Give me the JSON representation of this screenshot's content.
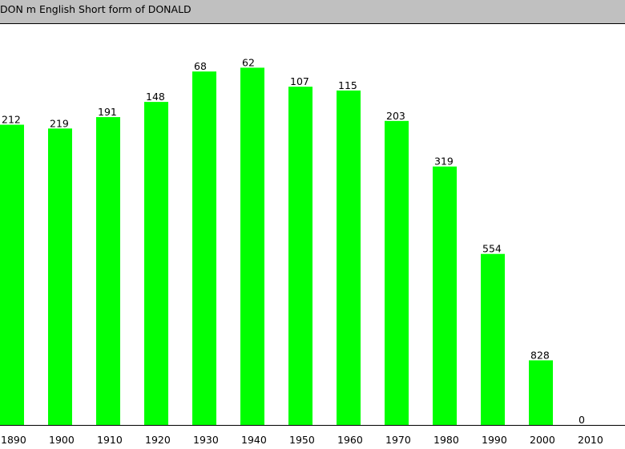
{
  "header": {
    "title": "DON m English Short form of DONALD"
  },
  "chart_data": {
    "type": "bar",
    "title": "DON m English Short form of DONALD",
    "xlabel": "",
    "ylabel": "",
    "categories": [
      "1890",
      "1900",
      "1910",
      "1920",
      "1930",
      "1940",
      "1950",
      "1960",
      "1970",
      "1980",
      "1990",
      "2000",
      "2010"
    ],
    "labels": [
      "212",
      "219",
      "191",
      "148",
      "68",
      "62",
      "107",
      "115",
      "203",
      "319",
      "554",
      "828",
      "0"
    ],
    "values": [
      0.79,
      0.78,
      0.81,
      0.85,
      0.93,
      0.94,
      0.89,
      0.88,
      0.8,
      0.68,
      0.45,
      0.17,
      0
    ],
    "value_meaning": "bar height as a fraction of the plot height (taller bar = higher popularity rank)",
    "grid": false,
    "legend": "none",
    "colors": {
      "bar": "#00ff00",
      "header": "#c0c0c0",
      "axis": "#000000"
    }
  }
}
